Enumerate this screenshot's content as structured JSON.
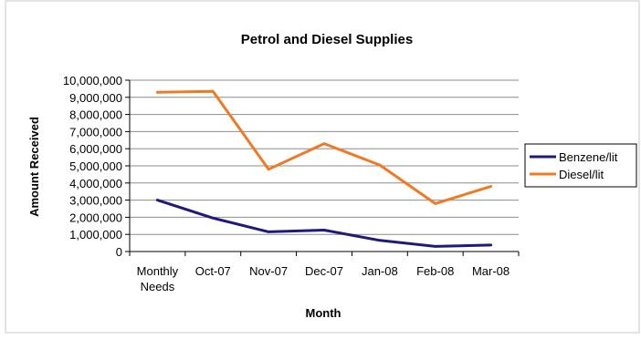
{
  "chart_data": {
    "type": "line",
    "title": "Petrol and Diesel Supplies",
    "xlabel": "Month",
    "ylabel": "Amount Received",
    "categories": [
      [
        "Monthly",
        "Needs"
      ],
      [
        "Oct-07"
      ],
      [
        "Nov-07"
      ],
      [
        "Dec-07"
      ],
      [
        "Jan-08"
      ],
      [
        "Feb-08"
      ],
      [
        "Mar-08"
      ]
    ],
    "ylim": [
      0,
      10000000
    ],
    "yticks": [
      0,
      1000000,
      2000000,
      3000000,
      4000000,
      5000000,
      6000000,
      7000000,
      8000000,
      9000000,
      10000000
    ],
    "ytick_labels": [
      "0",
      "1,000,000",
      "2,000,000",
      "3,000,000",
      "4,000,000",
      "5,000,000",
      "6,000,000",
      "7,000,000",
      "8,000,000",
      "9,000,000",
      "10,000,000"
    ],
    "grid": true,
    "legend_position": "right",
    "series": [
      {
        "name": "Benzene/lit",
        "color": "#1f1a7a",
        "values": [
          3000000,
          1950000,
          1150000,
          1250000,
          650000,
          300000,
          380000
        ]
      },
      {
        "name": "Diesel/lit",
        "color": "#f07a24",
        "values": [
          9300000,
          9350000,
          4800000,
          6300000,
          5050000,
          2800000,
          3800000
        ]
      }
    ]
  }
}
